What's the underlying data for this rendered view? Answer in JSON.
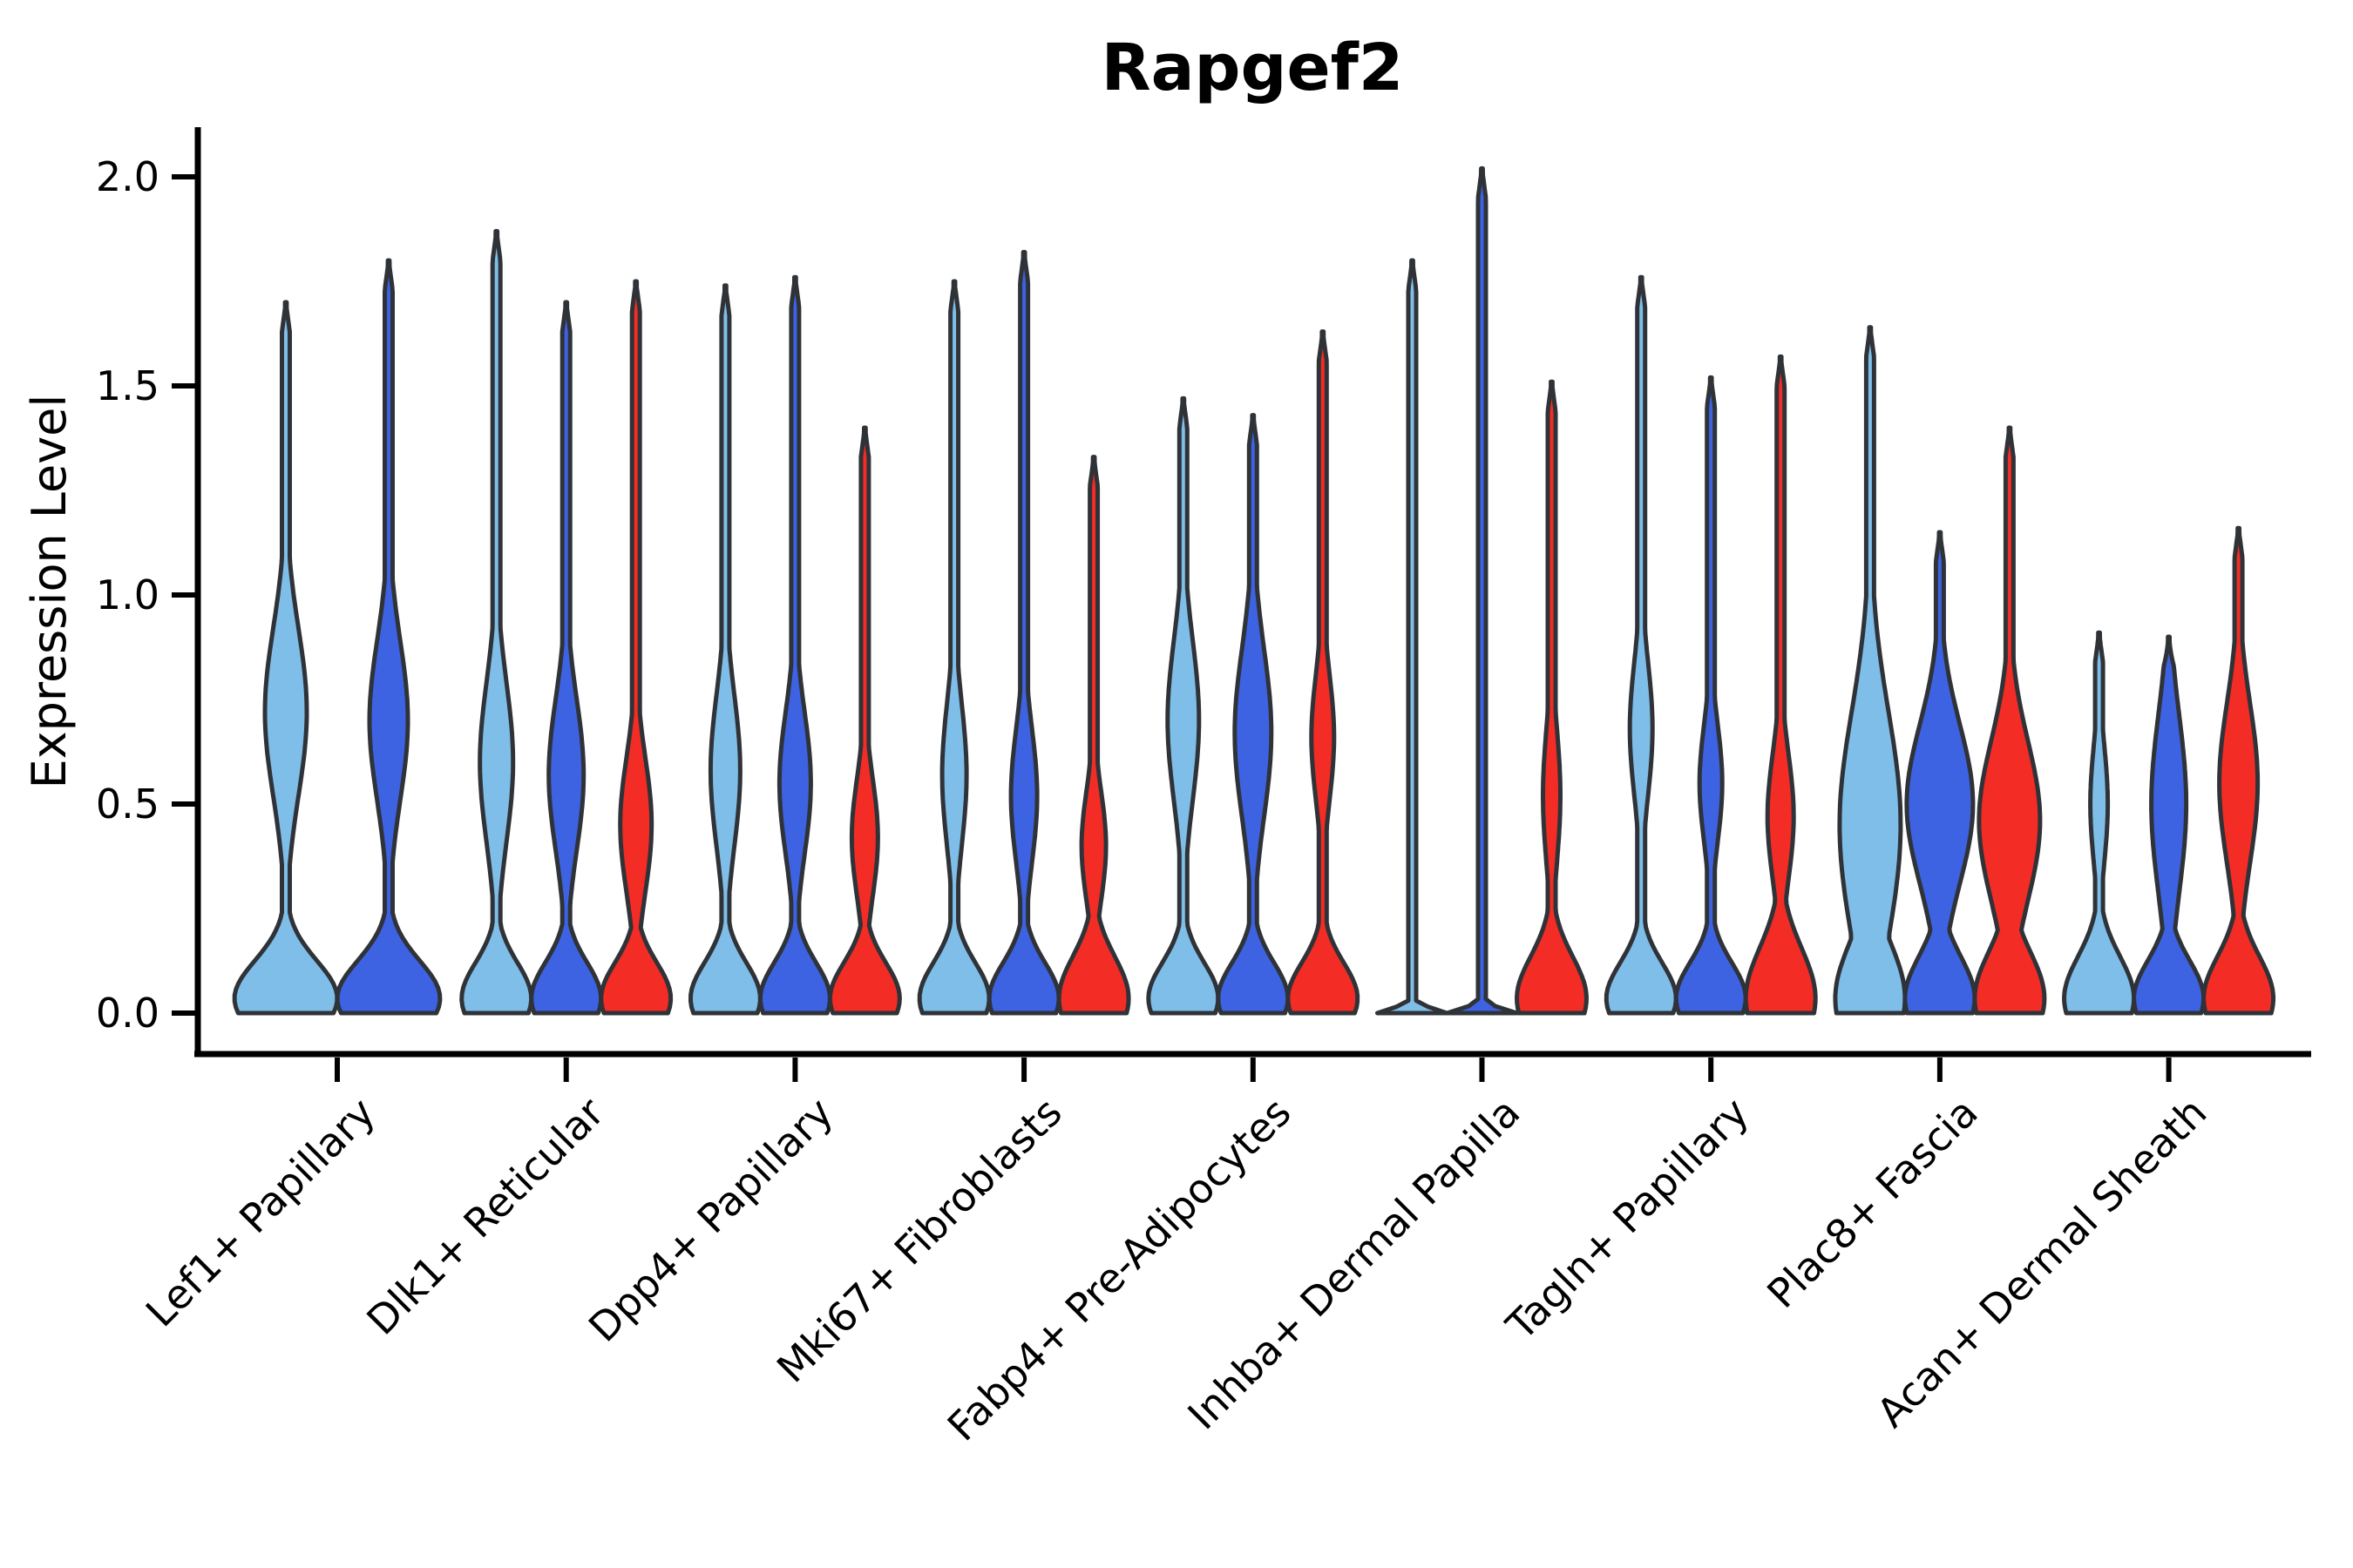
{
  "title": "Rapgef2",
  "ylabel": "Expression Level",
  "colors": {
    "light_blue": "#7FBEE9",
    "dark_blue": "#3D63E3",
    "red": "#F32C25",
    "outline": "#2F3338",
    "axis": "#000000"
  },
  "chart_data": {
    "type": "violin",
    "title": "Rapgef2",
    "xlabel": "",
    "ylabel": "Expression Level",
    "ylim": [
      0,
      2.1
    ],
    "yticks": [
      "0.0",
      "0.5",
      "1.0",
      "1.5",
      "2.0"
    ],
    "ytick_values": [
      0.0,
      0.5,
      1.0,
      1.5,
      2.0
    ],
    "grid": false,
    "legend": "none",
    "categories": [
      "Lef1+ Papillary",
      "Dlk1+ Reticular",
      "Dpp4+ Papillary",
      "Mki67+ Fibroblasts",
      "Fabp4+ Pre-Adipocytes",
      "Inhba+ Dermal Papilla",
      "Tagln+ Papillary",
      "Plac8+ Fascia",
      "Acan+ Dermal Sheath"
    ],
    "series_colors": [
      "light_blue",
      "dark_blue",
      "red"
    ],
    "groups": [
      {
        "label": "Lef1+ Papillary",
        "violins": [
          {
            "color": "light_blue",
            "max": 1.7,
            "half_width": 59,
            "base": {
              "c": 0.035,
              "s": 0.09
            },
            "bulge": {
              "c": 0.72,
              "s": 0.2,
              "a": 24
            }
          },
          {
            "color": "dark_blue",
            "max": 1.8,
            "half_width": 59,
            "base": {
              "c": 0.035,
              "s": 0.09
            },
            "bulge": {
              "c": 0.7,
              "s": 0.19,
              "a": 22
            }
          }
        ]
      },
      {
        "label": "Dlk1+ Reticular",
        "violins": [
          {
            "color": "light_blue",
            "max": 1.87,
            "half_width": 40,
            "base": {
              "c": 0.035,
              "s": 0.085
            },
            "bulge": {
              "c": 0.6,
              "s": 0.19,
              "a": 19
            }
          },
          {
            "color": "dark_blue",
            "max": 1.7,
            "half_width": 40,
            "base": {
              "c": 0.035,
              "s": 0.085
            },
            "bulge": {
              "c": 0.57,
              "s": 0.18,
              "a": 20
            }
          },
          {
            "color": "red",
            "max": 1.75,
            "half_width": 40,
            "base": {
              "c": 0.035,
              "s": 0.085
            },
            "bulge": {
              "c": 0.45,
              "s": 0.16,
              "a": 18
            }
          }
        ]
      },
      {
        "label": "Dpp4+ Papillary",
        "violins": [
          {
            "color": "light_blue",
            "max": 1.74,
            "half_width": 40,
            "base": {
              "c": 0.035,
              "s": 0.085
            },
            "bulge": {
              "c": 0.58,
              "s": 0.18,
              "a": 17
            }
          },
          {
            "color": "dark_blue",
            "max": 1.76,
            "half_width": 40,
            "base": {
              "c": 0.035,
              "s": 0.085
            },
            "bulge": {
              "c": 0.55,
              "s": 0.17,
              "a": 18
            }
          },
          {
            "color": "red",
            "max": 1.4,
            "half_width": 40,
            "base": {
              "c": 0.035,
              "s": 0.085
            },
            "bulge": {
              "c": 0.42,
              "s": 0.14,
              "a": 15
            }
          }
        ]
      },
      {
        "label": "Mki67+ Fibroblasts",
        "violins": [
          {
            "color": "light_blue",
            "max": 1.75,
            "half_width": 40,
            "base": {
              "c": 0.035,
              "s": 0.085
            },
            "bulge": {
              "c": 0.57,
              "s": 0.17,
              "a": 14
            }
          },
          {
            "color": "dark_blue",
            "max": 1.82,
            "half_width": 40,
            "base": {
              "c": 0.035,
              "s": 0.085
            },
            "bulge": {
              "c": 0.52,
              "s": 0.16,
              "a": 15
            }
          },
          {
            "color": "red",
            "max": 1.33,
            "half_width": 40,
            "base": {
              "c": 0.035,
              "s": 0.1
            },
            "bulge": {
              "c": 0.4,
              "s": 0.13,
              "a": 14
            }
          }
        ]
      },
      {
        "label": "Fabp4+ Pre-Adipocytes",
        "violins": [
          {
            "color": "light_blue",
            "max": 1.47,
            "half_width": 40,
            "base": {
              "c": 0.035,
              "s": 0.085
            },
            "bulge": {
              "c": 0.7,
              "s": 0.19,
              "a": 18
            }
          },
          {
            "color": "dark_blue",
            "max": 1.43,
            "half_width": 40,
            "base": {
              "c": 0.035,
              "s": 0.085
            },
            "bulge": {
              "c": 0.67,
              "s": 0.2,
              "a": 21
            }
          },
          {
            "color": "red",
            "max": 1.63,
            "half_width": 40,
            "base": {
              "c": 0.035,
              "s": 0.085
            },
            "bulge": {
              "c": 0.66,
              "s": 0.15,
              "a": 13
            }
          }
        ]
      },
      {
        "label": "Inhba+ Dermal Papilla",
        "violins": [
          {
            "color": "light_blue",
            "max": 1.8,
            "half_width": 40,
            "base": {
              "c": 0.0,
              "s": 0.012
            },
            "bulge": null,
            "flat": true
          },
          {
            "color": "dark_blue",
            "max": 2.02,
            "half_width": 40,
            "base": {
              "c": 0.0,
              "s": 0.012
            },
            "bulge": null,
            "flat": true
          },
          {
            "color": "red",
            "max": 1.51,
            "half_width": 40,
            "base": {
              "c": 0.035,
              "s": 0.1
            },
            "bulge": {
              "c": 0.52,
              "s": 0.16,
              "a": 10
            }
          }
        ]
      },
      {
        "label": "Tagln+ Papillary",
        "violins": [
          {
            "color": "light_blue",
            "max": 1.76,
            "half_width": 40,
            "base": {
              "c": 0.035,
              "s": 0.085
            },
            "bulge": {
              "c": 0.68,
              "s": 0.16,
              "a": 13
            }
          },
          {
            "color": "dark_blue",
            "max": 1.52,
            "half_width": 40,
            "base": {
              "c": 0.035,
              "s": 0.085
            },
            "bulge": {
              "c": 0.55,
              "s": 0.14,
              "a": 13
            }
          },
          {
            "color": "red",
            "max": 1.57,
            "half_width": 40,
            "base": {
              "c": 0.035,
              "s": 0.12
            },
            "bulge": {
              "c": 0.47,
              "s": 0.15,
              "a": 15
            }
          }
        ]
      },
      {
        "label": "Plac8+ Fascia",
        "violins": [
          {
            "color": "light_blue",
            "max": 1.64,
            "half_width": 40,
            "base": {
              "c": 0.035,
              "s": 0.13
            },
            "bulge": {
              "c": 0.45,
              "s": 0.27,
              "a": 35
            }
          },
          {
            "color": "dark_blue",
            "max": 1.15,
            "half_width": 40,
            "base": {
              "c": 0.035,
              "s": 0.1
            },
            "bulge": {
              "c": 0.5,
              "s": 0.19,
              "a": 38
            }
          },
          {
            "color": "red",
            "max": 1.4,
            "half_width": 40,
            "base": {
              "c": 0.035,
              "s": 0.11
            },
            "bulge": {
              "c": 0.46,
              "s": 0.19,
              "a": 35
            }
          }
        ]
      },
      {
        "label": "Acan+ Dermal Sheath",
        "violins": [
          {
            "color": "light_blue",
            "max": 0.91,
            "half_width": 40,
            "base": {
              "c": 0.035,
              "s": 0.1
            },
            "bulge": {
              "c": 0.5,
              "s": 0.14,
              "a": 10
            }
          },
          {
            "color": "dark_blue",
            "max": 0.9,
            "half_width": 40,
            "base": {
              "c": 0.035,
              "s": 0.09
            },
            "bulge": {
              "c": 0.5,
              "s": 0.21,
              "a": 20
            }
          },
          {
            "color": "red",
            "max": 1.16,
            "half_width": 40,
            "base": {
              "c": 0.035,
              "s": 0.1
            },
            "bulge": {
              "c": 0.55,
              "s": 0.19,
              "a": 22
            }
          }
        ]
      }
    ]
  }
}
